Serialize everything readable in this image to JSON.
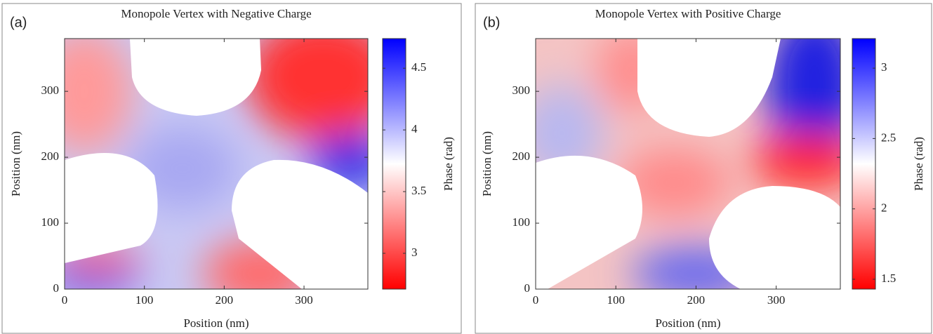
{
  "chart_data": [
    {
      "type": "heatmap",
      "panel_label": "(a)",
      "title": "Monopole Vertex with Negative Charge",
      "xlabel": "Position (nm)",
      "ylabel": "Position (nm)",
      "colorbar_label": "Phase (rad)",
      "xlim": [
        0,
        380
      ],
      "ylim": [
        0,
        380
      ],
      "xticks": [
        0,
        100,
        200,
        300
      ],
      "yticks": [
        0,
        100,
        200,
        300
      ],
      "clim": [
        2.71,
        4.74
      ],
      "cticks": [
        3,
        3.5,
        4,
        4.5
      ],
      "colormap": [
        "#ff0000",
        "#ffffff",
        "#0000ff"
      ]
    },
    {
      "type": "heatmap",
      "panel_label": "(b)",
      "title": "Monopole Vertex with Positive Charge",
      "xlabel": "Position (nm)",
      "ylabel": "Position (nm)",
      "colorbar_label": "Phase (rad)",
      "xlim": [
        0,
        380
      ],
      "ylim": [
        0,
        380
      ],
      "xticks": [
        0,
        100,
        200,
        300
      ],
      "yticks": [
        0,
        100,
        200,
        300
      ],
      "clim": [
        1.43,
        3.21
      ],
      "cticks": [
        1.5,
        2,
        2.5,
        3
      ],
      "colormap": [
        "#ff0000",
        "#ffffff",
        "#0000ff"
      ]
    }
  ]
}
